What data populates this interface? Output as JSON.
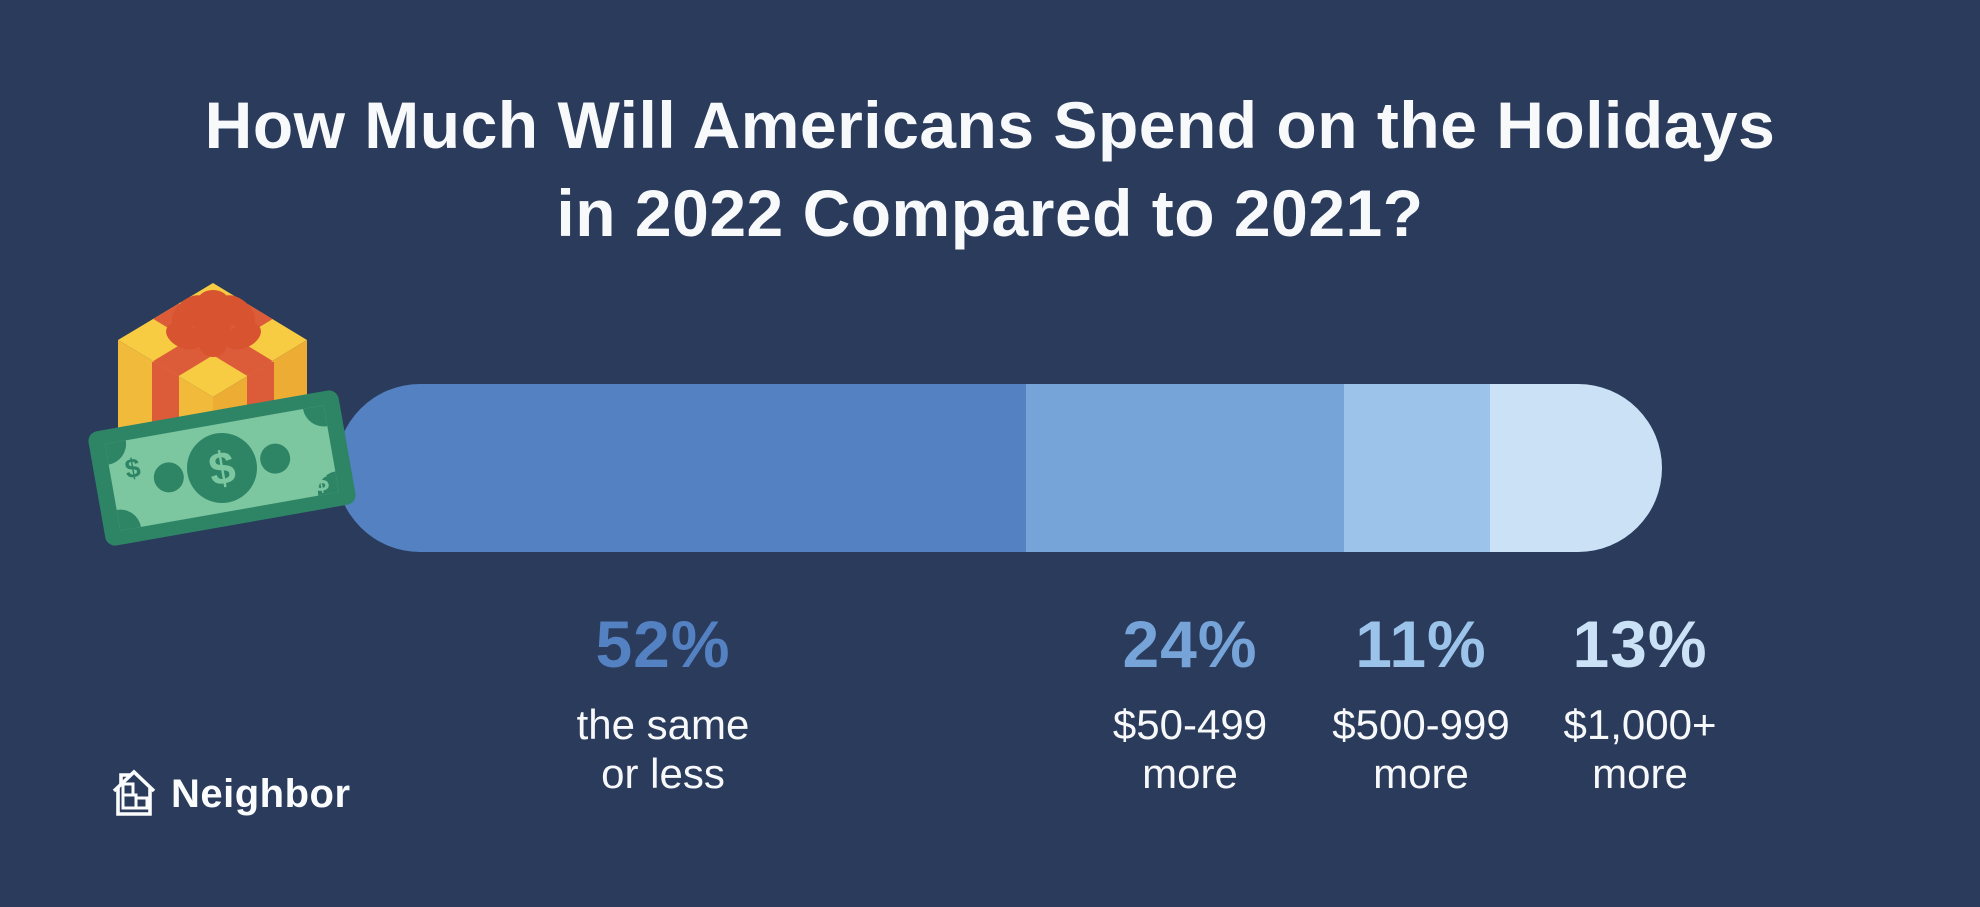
{
  "page": {
    "background": "#2A3B5C"
  },
  "title": {
    "line1": "How Much Will Americans Spend on the Holidays",
    "line2": "in 2022 Compared to 2021?"
  },
  "chart_data": {
    "type": "bar",
    "variant": "horizontal-stacked-pill",
    "title": "How Much Will Americans Spend on the Holidays in 2022 Compared to 2021?",
    "unit": "percent",
    "categories": [
      "the same or less",
      "$50-499 more",
      "$500-999 more",
      "$1,000+ more"
    ],
    "values": [
      52,
      24,
      11,
      13
    ],
    "colors": [
      "#5381C1",
      "#76A4D8",
      "#9CC3E9",
      "#CBE2F6"
    ],
    "background": "#2A3B5C",
    "axes": "none",
    "gridlines": "off",
    "legend": "none",
    "data_labels": "below-bar"
  },
  "labels": [
    {
      "pct": "52%",
      "line1": "the same",
      "line2": "or less",
      "color": "#5381C1"
    },
    {
      "pct": "24%",
      "line1": "$50-499",
      "line2": "more",
      "color": "#76A4D8"
    },
    {
      "pct": "11%",
      "line1": "$500-999",
      "line2": "more",
      "color": "#9CC3E9"
    },
    {
      "pct": "13%",
      "line1": "$1,000+",
      "line2": "more",
      "color": "#CBE2F6"
    }
  ],
  "illustration": {
    "items": [
      "gift-box-icon",
      "dollar-bill-icon"
    ],
    "currency_symbol": "$",
    "gift_colors": {
      "top": "#F8CC42",
      "left": "#F2BA3A",
      "right": "#EDAC33",
      "ribbon": "#DC5C3A",
      "bow": "#D8532F"
    },
    "bill_colors": {
      "dark": "#2E8566",
      "light": "#7CC6A0"
    }
  },
  "logo": {
    "name": "Neighbor"
  }
}
